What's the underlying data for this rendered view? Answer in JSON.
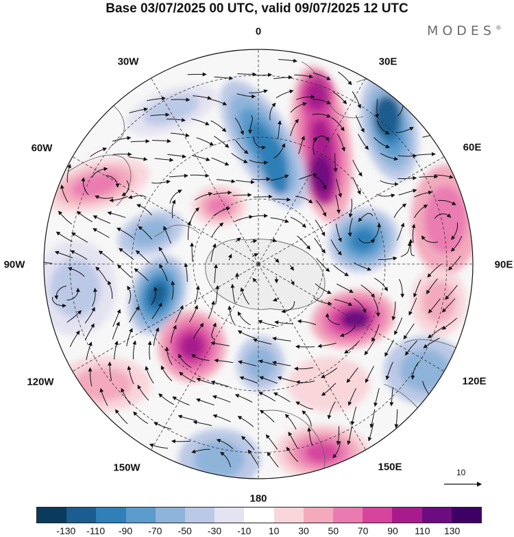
{
  "title": "Base 03/07/2025 00 UTC, valid 09/07/2025 12 UTC",
  "brand": {
    "name": "MODES",
    "mark": "®"
  },
  "longitude_labels": {
    "lon_0": "0",
    "lon_30e": "30E",
    "lon_60e": "60E",
    "lon_90e": "90E",
    "lon_120e": "120E",
    "lon_150e": "150E",
    "lon_180": "180",
    "lon_150w": "150W",
    "lon_120w": "120W",
    "lon_90w": "90W",
    "lon_60w": "60W",
    "lon_30w": "30W"
  },
  "reference_vector": {
    "label": "10"
  },
  "colorbar": {
    "tick_labels": [
      "-130",
      "-110",
      "-90",
      "-70",
      "-50",
      "-30",
      "-10",
      "10",
      "30",
      "50",
      "70",
      "90",
      "110",
      "130"
    ],
    "colors": [
      "#0a3a5c",
      "#1a5d8e",
      "#2f7fb8",
      "#5b9ccc",
      "#8fb4da",
      "#bcc9e6",
      "#e4e3f1",
      "#ffffff",
      "#f8d6da",
      "#f3aabd",
      "#ea7bb1",
      "#d6449e",
      "#a71b8d",
      "#6e0b80",
      "#3f0066"
    ]
  },
  "map_style": {
    "disc_background": "#f7f7f7",
    "grid_color": "#333333",
    "coast_color": "#666666",
    "streamline_color": "#111111"
  }
}
